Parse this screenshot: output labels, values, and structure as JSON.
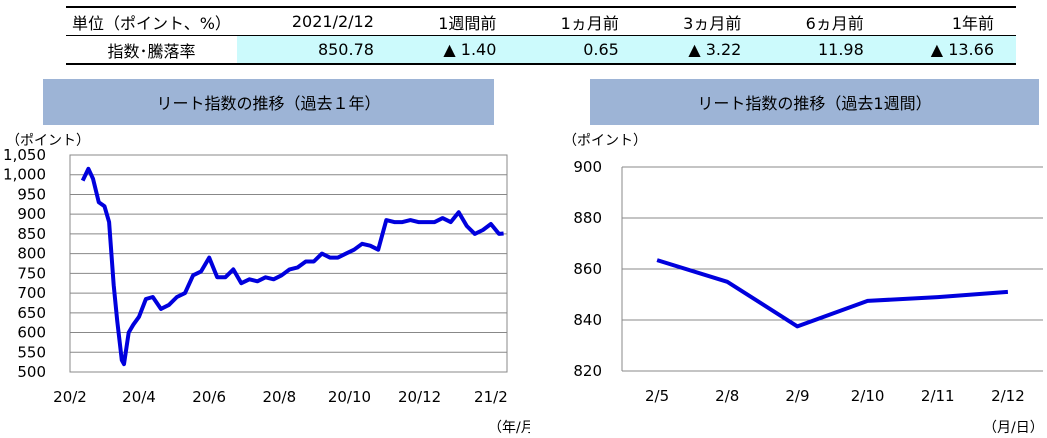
{
  "summary": {
    "headers": [
      "単位（ポイント、%）",
      "2021/2/12",
      "1週間前",
      "1ヵ月前",
      "3ヵ月前",
      "6ヵ月前",
      "1年前"
    ],
    "row_label": "指数･騰落率",
    "values": [
      "850.78",
      "▲ 1.40",
      "0.65",
      "▲ 3.22",
      "11.98",
      "▲ 13.66"
    ]
  },
  "chart_data": [
    {
      "type": "line",
      "title": "リート指数の推移（過去１年）",
      "ylabel": "（ポイント）",
      "xlabel": "（年/月）",
      "ylim": [
        500,
        1050
      ],
      "yticks": [
        "500",
        "550",
        "600",
        "650",
        "700",
        "750",
        "800",
        "850",
        "900",
        "950",
        "1,000",
        "1,050"
      ],
      "xticks": [
        "20/2",
        "20/4",
        "20/6",
        "20/8",
        "20/10",
        "20/12",
        "21/2"
      ],
      "grid": true,
      "color": "#0000dd",
      "series": [
        {
          "x": [
            "2020/02/12",
            "2020/02/17",
            "2020/02/21",
            "2020/02/26",
            "2020/03/02",
            "2020/03/06",
            "2020/03/10",
            "2020/03/13",
            "2020/03/17",
            "2020/03/19",
            "2020/03/23",
            "2020/03/27",
            "2020/04/01",
            "2020/04/07",
            "2020/04/13",
            "2020/04/20",
            "2020/04/27",
            "2020/05/04",
            "2020/05/11",
            "2020/05/18",
            "2020/05/25",
            "2020/06/01",
            "2020/06/08",
            "2020/06/15",
            "2020/06/22",
            "2020/06/29",
            "2020/07/06",
            "2020/07/13",
            "2020/07/20",
            "2020/07/27",
            "2020/08/03",
            "2020/08/10",
            "2020/08/17",
            "2020/08/24",
            "2020/08/31",
            "2020/09/07",
            "2020/09/14",
            "2020/09/21",
            "2020/09/28",
            "2020/10/05",
            "2020/10/12",
            "2020/10/19",
            "2020/10/26",
            "2020/11/02",
            "2020/11/09",
            "2020/11/16",
            "2020/11/23",
            "2020/11/30",
            "2020/12/07",
            "2020/12/14",
            "2020/12/21",
            "2020/12/28",
            "2021/01/04",
            "2021/01/11",
            "2021/01/18",
            "2021/01/25",
            "2021/02/01",
            "2021/02/08",
            "2021/02/12"
          ],
          "y": [
            985,
            1015,
            990,
            930,
            920,
            880,
            720,
            630,
            530,
            520,
            600,
            620,
            640,
            685,
            690,
            660,
            670,
            690,
            700,
            745,
            755,
            790,
            740,
            740,
            760,
            725,
            735,
            730,
            740,
            735,
            745,
            760,
            765,
            780,
            780,
            800,
            790,
            790,
            800,
            810,
            825,
            820,
            810,
            885,
            880,
            880,
            885,
            880,
            880,
            880,
            890,
            880,
            905,
            870,
            850,
            860,
            875,
            850,
            851
          ]
        }
      ]
    },
    {
      "type": "line",
      "title": "リート指数の推移（過去1週間）",
      "ylabel": "（ポイント）",
      "xlabel": "（月/日）",
      "ylim": [
        820,
        900
      ],
      "yticks": [
        "820",
        "840",
        "860",
        "880",
        "900"
      ],
      "categories": [
        "2/5",
        "2/8",
        "2/9",
        "2/10",
        "2/11",
        "2/12"
      ],
      "values": [
        863.5,
        855.0,
        837.5,
        847.5,
        849.0,
        851.0
      ],
      "grid": true,
      "color": "#0000dd"
    }
  ]
}
